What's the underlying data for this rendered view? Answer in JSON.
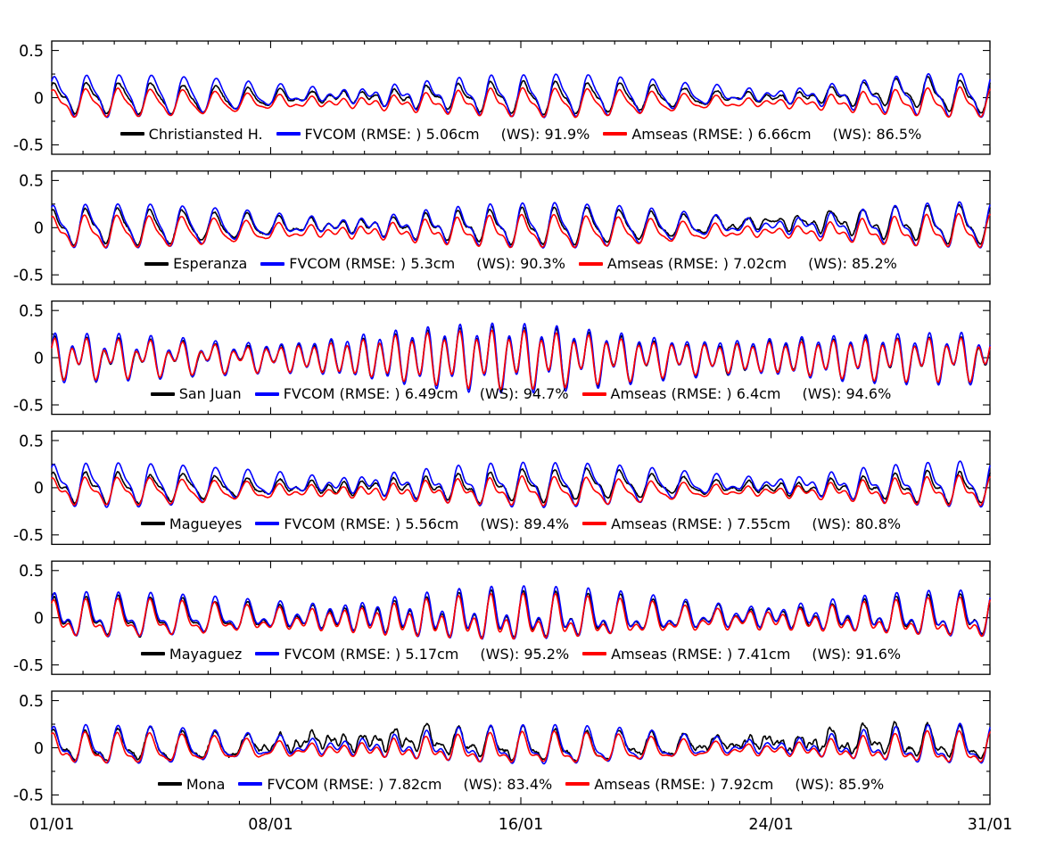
{
  "figure": {
    "title": "",
    "x_tick_labels": [
      "01/01",
      "08/01",
      "16/01",
      "24/01",
      "31/01"
    ],
    "x_tick_days": [
      0,
      7,
      15,
      23,
      30
    ],
    "x_range_days": [
      0,
      30
    ],
    "y_tick_labels": [
      "0.5",
      "0",
      "-0.5"
    ],
    "y_tick_values": [
      0.5,
      0,
      -0.5
    ],
    "y_minor_values": [
      0.25,
      -0.25
    ],
    "y_range": [
      -0.6,
      0.6
    ],
    "grid": "off",
    "legend_position": "inside-bottom-center",
    "colors": {
      "observation": "#000000",
      "fvcom": "#0000ff",
      "amseas": "#ff0000",
      "axis": "#000000",
      "background": "#ffffff"
    }
  },
  "chart_data": [
    {
      "type": "line",
      "station": "Christiansted H.",
      "legend": {
        "obs_label": "Christiansted H.",
        "fvcom_label": "FVCOM (RMSE: ) 5.06cm",
        "fvcom_ws": "(WS): 91.9%",
        "amseas_label": "Amseas (RMSE: ) 6.66cm",
        "amseas_ws": "(WS): 86.5%"
      },
      "stats": {
        "fvcom_rmse_cm": 5.06,
        "fvcom_ws_pct": 91.9,
        "amseas_rmse_cm": 6.66,
        "amseas_ws_pct": 86.5
      },
      "series": [
        {
          "name": "observation",
          "color_key": "observation",
          "offset": 0.0,
          "jitter": 0.018,
          "fast": 0.007,
          "seed": 11,
          "components": [
            {
              "p": 23.934,
              "a": 0.082,
              "ph": 10
            },
            {
              "p": 25.819,
              "a": 0.062,
              "ph": 75
            },
            {
              "p": 12.421,
              "a": 0.042,
              "ph": 70
            },
            {
              "p": 12.0,
              "a": 0.016,
              "ph": 100
            }
          ],
          "humps": [
            {
              "c": 27,
              "w": 1.4,
              "a": 0.05
            }
          ],
          "bursts": []
        },
        {
          "name": "fvcom",
          "color_key": "fvcom",
          "offset": 0.025,
          "jitter": 0.005,
          "fast": 0,
          "seed": 12,
          "components": [
            {
              "p": 23.934,
              "a": 0.115,
              "ph": 5
            },
            {
              "p": 25.819,
              "a": 0.085,
              "ph": 70
            },
            {
              "p": 12.421,
              "a": 0.05,
              "ph": 65
            },
            {
              "p": 12.0,
              "a": 0.018,
              "ph": 95
            }
          ],
          "humps": [],
          "bursts": []
        },
        {
          "name": "amseas",
          "color_key": "amseas",
          "offset": -0.055,
          "jitter": 0.006,
          "fast": 0,
          "seed": 13,
          "components": [
            {
              "p": 23.934,
              "a": 0.075,
              "ph": 18
            },
            {
              "p": 25.819,
              "a": 0.055,
              "ph": 83
            },
            {
              "p": 12.421,
              "a": 0.038,
              "ph": 78
            },
            {
              "p": 12.0,
              "a": 0.014,
              "ph": 108
            }
          ],
          "humps": [],
          "bursts": []
        }
      ]
    },
    {
      "type": "line",
      "station": "Esperanza",
      "legend": {
        "obs_label": "Esperanza",
        "fvcom_label": "FVCOM (RMSE: ) 5.3cm",
        "fvcom_ws": "(WS): 90.3%",
        "amseas_label": "Amseas (RMSE: ) 7.02cm",
        "amseas_ws": "(WS): 85.2%"
      },
      "stats": {
        "fvcom_rmse_cm": 5.3,
        "fvcom_ws_pct": 90.3,
        "amseas_rmse_cm": 7.02,
        "amseas_ws_pct": 85.2
      },
      "series": [
        {
          "name": "observation",
          "color_key": "observation",
          "offset": 0.01,
          "jitter": 0.02,
          "fast": 0.007,
          "seed": 21,
          "components": [
            {
              "p": 23.934,
              "a": 0.095,
              "ph": 25
            },
            {
              "p": 25.819,
              "a": 0.07,
              "ph": 90
            },
            {
              "p": 12.421,
              "a": 0.05,
              "ph": 90
            },
            {
              "p": 12.0,
              "a": 0.018,
              "ph": 120
            }
          ],
          "humps": [
            {
              "c": 24.5,
              "w": 2.2,
              "a": 0.05
            }
          ],
          "bursts": [
            {
              "c": 24.5,
              "w": 2.2,
              "a": 0.02,
              "p": 8
            }
          ]
        },
        {
          "name": "fvcom",
          "color_key": "fvcom",
          "offset": 0.02,
          "jitter": 0.005,
          "fast": 0,
          "seed": 22,
          "components": [
            {
              "p": 23.934,
              "a": 0.119,
              "ph": 20
            },
            {
              "p": 25.819,
              "a": 0.088,
              "ph": 85
            },
            {
              "p": 12.421,
              "a": 0.055,
              "ph": 85
            },
            {
              "p": 12.0,
              "a": 0.02,
              "ph": 115
            }
          ],
          "humps": [],
          "bursts": []
        },
        {
          "name": "amseas",
          "color_key": "amseas",
          "offset": -0.045,
          "jitter": 0.006,
          "fast": 0,
          "seed": 23,
          "components": [
            {
              "p": 23.934,
              "a": 0.085,
              "ph": 33
            },
            {
              "p": 25.819,
              "a": 0.062,
              "ph": 98
            },
            {
              "p": 12.421,
              "a": 0.045,
              "ph": 98
            },
            {
              "p": 12.0,
              "a": 0.016,
              "ph": 128
            }
          ],
          "humps": [],
          "bursts": []
        }
      ]
    },
    {
      "type": "line",
      "station": "San Juan",
      "legend": {
        "obs_label": "San Juan",
        "fvcom_label": "FVCOM (RMSE: ) 6.49cm",
        "fvcom_ws": "(WS): 94.7%",
        "amseas_label": "Amseas (RMSE: ) 6.4cm",
        "amseas_ws": "(WS): 94.6%"
      },
      "stats": {
        "fvcom_rmse_cm": 6.49,
        "fvcom_ws_pct": 94.7,
        "amseas_rmse_cm": 6.4,
        "amseas_ws_pct": 94.6
      },
      "series": [
        {
          "name": "observation",
          "color_key": "observation",
          "offset": 0.0,
          "jitter": 0.015,
          "fast": 0.009,
          "seed": 31,
          "components": [
            {
              "p": 12.421,
              "a": 0.165,
              "ph": 0
            },
            {
              "p": 12.0,
              "a": 0.05,
              "ph": 30
            },
            {
              "p": 12.658,
              "a": 0.045,
              "ph": 200
            },
            {
              "p": 23.934,
              "a": 0.07,
              "ph": 80
            },
            {
              "p": 25.819,
              "a": 0.045,
              "ph": 140
            }
          ],
          "humps": [],
          "bursts": []
        },
        {
          "name": "fvcom",
          "color_key": "fvcom",
          "offset": 0.01,
          "jitter": 0.005,
          "fast": 0,
          "seed": 32,
          "components": [
            {
              "p": 12.421,
              "a": 0.185,
              "ph": -4
            },
            {
              "p": 12.0,
              "a": 0.055,
              "ph": 26
            },
            {
              "p": 12.658,
              "a": 0.05,
              "ph": 196
            },
            {
              "p": 23.934,
              "a": 0.075,
              "ph": 76
            },
            {
              "p": 25.819,
              "a": 0.05,
              "ph": 136
            }
          ],
          "humps": [],
          "bursts": []
        },
        {
          "name": "amseas",
          "color_key": "amseas",
          "offset": -0.005,
          "jitter": 0.005,
          "fast": 0,
          "seed": 33,
          "components": [
            {
              "p": 12.421,
              "a": 0.155,
              "ph": 5
            },
            {
              "p": 12.0,
              "a": 0.048,
              "ph": 35
            },
            {
              "p": 12.658,
              "a": 0.042,
              "ph": 205
            },
            {
              "p": 23.934,
              "a": 0.065,
              "ph": 85
            },
            {
              "p": 25.819,
              "a": 0.042,
              "ph": 145
            }
          ],
          "humps": [],
          "bursts": []
        }
      ]
    },
    {
      "type": "line",
      "station": "Magueyes",
      "legend": {
        "obs_label": "Magueyes",
        "fvcom_label": "FVCOM (RMSE: ) 5.56cm",
        "fvcom_ws": "(WS): 89.4%",
        "amseas_label": "Amseas (RMSE: ) 7.55cm",
        "amseas_ws": "(WS): 80.8%"
      },
      "stats": {
        "fvcom_rmse_cm": 5.56,
        "fvcom_ws_pct": 89.4,
        "amseas_rmse_cm": 7.55,
        "amseas_ws_pct": 80.8
      },
      "series": [
        {
          "name": "observation",
          "color_key": "observation",
          "offset": 0.0,
          "jitter": 0.018,
          "fast": 0.007,
          "seed": 41,
          "components": [
            {
              "p": 23.934,
              "a": 0.075,
              "ph": 15
            },
            {
              "p": 25.819,
              "a": 0.055,
              "ph": 80
            },
            {
              "p": 12.421,
              "a": 0.05,
              "ph": 80
            },
            {
              "p": 12.0,
              "a": 0.02,
              "ph": 110
            }
          ],
          "humps": [
            {
              "c": 17.5,
              "w": 1.5,
              "a": 0.04
            }
          ],
          "bursts": []
        },
        {
          "name": "fvcom",
          "color_key": "fvcom",
          "offset": 0.035,
          "jitter": 0.005,
          "fast": 0,
          "seed": 42,
          "components": [
            {
              "p": 23.934,
              "a": 0.115,
              "ph": 10
            },
            {
              "p": 25.819,
              "a": 0.085,
              "ph": 75
            },
            {
              "p": 12.421,
              "a": 0.06,
              "ph": 75
            },
            {
              "p": 12.0,
              "a": 0.022,
              "ph": 105
            }
          ],
          "humps": [],
          "bursts": []
        },
        {
          "name": "amseas",
          "color_key": "amseas",
          "offset": -0.04,
          "jitter": 0.006,
          "fast": 0,
          "seed": 43,
          "components": [
            {
              "p": 23.934,
              "a": 0.07,
              "ph": 23
            },
            {
              "p": 25.819,
              "a": 0.05,
              "ph": 88
            },
            {
              "p": 12.421,
              "a": 0.045,
              "ph": 88
            },
            {
              "p": 12.0,
              "a": 0.018,
              "ph": 118
            }
          ],
          "humps": [],
          "bursts": []
        }
      ]
    },
    {
      "type": "line",
      "station": "Mayaguez",
      "legend": {
        "obs_label": "Mayaguez",
        "fvcom_label": "FVCOM (RMSE: ) 5.17cm",
        "fvcom_ws": "(WS): 95.2%",
        "amseas_label": "Amseas (RMSE: ) 7.41cm",
        "amseas_ws": "(WS): 91.6%"
      },
      "stats": {
        "fvcom_rmse_cm": 5.17,
        "fvcom_ws_pct": 95.2,
        "amseas_rmse_cm": 7.41,
        "amseas_ws_pct": 91.6
      },
      "series": [
        {
          "name": "observation",
          "color_key": "observation",
          "offset": 0.0,
          "jitter": 0.015,
          "fast": 0.008,
          "seed": 51,
          "components": [
            {
              "p": 23.934,
              "a": 0.095,
              "ph": 20
            },
            {
              "p": 25.819,
              "a": 0.065,
              "ph": 85
            },
            {
              "p": 12.421,
              "a": 0.095,
              "ph": 40
            },
            {
              "p": 12.0,
              "a": 0.03,
              "ph": 70
            },
            {
              "p": 12.658,
              "a": 0.025,
              "ph": 220
            }
          ],
          "humps": [],
          "bursts": []
        },
        {
          "name": "fvcom",
          "color_key": "fvcom",
          "offset": 0.015,
          "jitter": 0.005,
          "fast": 0,
          "seed": 52,
          "components": [
            {
              "p": 23.934,
              "a": 0.107,
              "ph": 15
            },
            {
              "p": 25.819,
              "a": 0.073,
              "ph": 80
            },
            {
              "p": 12.421,
              "a": 0.106,
              "ph": 35
            },
            {
              "p": 12.0,
              "a": 0.034,
              "ph": 65
            },
            {
              "p": 12.658,
              "a": 0.028,
              "ph": 215
            }
          ],
          "humps": [],
          "bursts": []
        },
        {
          "name": "amseas",
          "color_key": "amseas",
          "offset": -0.025,
          "jitter": 0.006,
          "fast": 0,
          "seed": 53,
          "components": [
            {
              "p": 23.934,
              "a": 0.092,
              "ph": 28
            },
            {
              "p": 25.819,
              "a": 0.063,
              "ph": 93
            },
            {
              "p": 12.421,
              "a": 0.092,
              "ph": 48
            },
            {
              "p": 12.0,
              "a": 0.029,
              "ph": 78
            },
            {
              "p": 12.658,
              "a": 0.024,
              "ph": 228
            }
          ],
          "humps": [],
          "bursts": []
        }
      ]
    },
    {
      "type": "line",
      "station": "Mona",
      "legend": {
        "obs_label": "Mona",
        "fvcom_label": "FVCOM (RMSE: ) 7.82cm",
        "fvcom_ws": "(WS): 83.4%",
        "amseas_label": "Amseas (RMSE: ) 7.92cm",
        "amseas_ws": "(WS): 85.9%"
      },
      "stats": {
        "fvcom_rmse_cm": 7.82,
        "fvcom_ws_pct": 83.4,
        "amseas_rmse_cm": 7.92,
        "amseas_ws_pct": 85.9
      },
      "series": [
        {
          "name": "observation",
          "color_key": "observation",
          "offset": 0.005,
          "jitter": 0.028,
          "fast": 0.012,
          "seed": 61,
          "components": [
            {
              "p": 23.934,
              "a": 0.085,
              "ph": 30
            },
            {
              "p": 25.819,
              "a": 0.06,
              "ph": 95
            },
            {
              "p": 12.421,
              "a": 0.055,
              "ph": 60
            },
            {
              "p": 12.0,
              "a": 0.02,
              "ph": 90
            }
          ],
          "humps": [
            {
              "c": 9.5,
              "w": 2.0,
              "a": 0.07
            },
            {
              "c": 13,
              "w": 1.2,
              "a": 0.05
            },
            {
              "c": 24,
              "w": 2.2,
              "a": 0.06
            },
            {
              "c": 27.5,
              "w": 1.2,
              "a": 0.05
            }
          ],
          "bursts": [
            {
              "c": 9.5,
              "w": 2.5,
              "a": 0.03,
              "p": 6
            },
            {
              "c": 24,
              "w": 2.5,
              "a": 0.025,
              "p": 5
            }
          ]
        },
        {
          "name": "fvcom",
          "color_key": "fvcom",
          "offset": 0.01,
          "jitter": 0.006,
          "fast": 0,
          "seed": 62,
          "components": [
            {
              "p": 23.934,
              "a": 0.1,
              "ph": 25
            },
            {
              "p": 25.819,
              "a": 0.072,
              "ph": 90
            },
            {
              "p": 12.421,
              "a": 0.06,
              "ph": 55
            },
            {
              "p": 12.0,
              "a": 0.022,
              "ph": 85
            }
          ],
          "humps": [],
          "bursts": []
        },
        {
          "name": "amseas",
          "color_key": "amseas",
          "offset": -0.02,
          "jitter": 0.007,
          "fast": 0,
          "seed": 63,
          "components": [
            {
              "p": 23.934,
              "a": 0.08,
              "ph": 38
            },
            {
              "p": 25.819,
              "a": 0.057,
              "ph": 103
            },
            {
              "p": 12.421,
              "a": 0.05,
              "ph": 68
            },
            {
              "p": 12.0,
              "a": 0.019,
              "ph": 98
            }
          ],
          "humps": [],
          "bursts": []
        }
      ]
    }
  ]
}
